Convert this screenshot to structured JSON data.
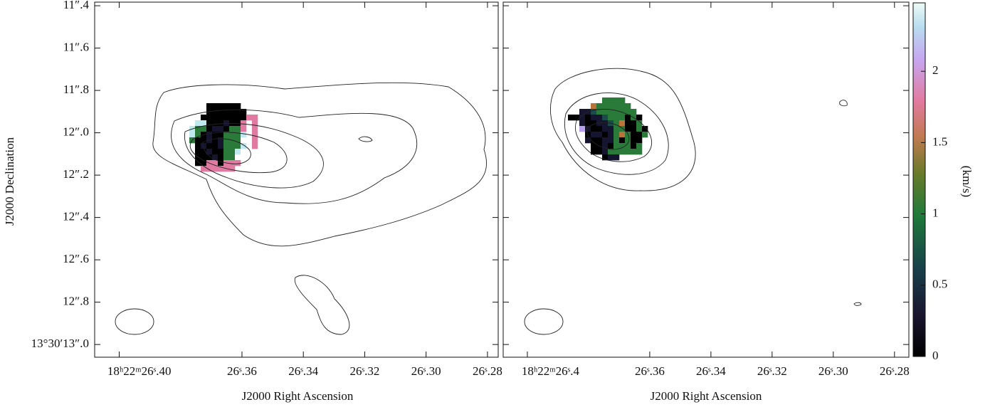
{
  "chart_data": [
    {
      "type": "image",
      "xlabel": "J2000 Right Ascension",
      "ylabel": "J2000 Declination",
      "xlim": [
        26.408,
        26.2765
      ],
      "ylim": [
        13.06,
        11.383
      ],
      "xticks": [
        {
          "value": 26.4,
          "label": "18ʰ22ᵐ26ˢ.40"
        },
        {
          "value": 26.36,
          "label": "26ˢ.36"
        },
        {
          "value": 26.34,
          "label": "26ˢ.34"
        },
        {
          "value": 26.32,
          "label": "26ˢ.32"
        },
        {
          "value": 26.3,
          "label": "26ˢ.30"
        },
        {
          "value": 26.28,
          "label": "26ˢ.28"
        }
      ],
      "yticks": [
        {
          "value": 11.4,
          "label": "11″.4"
        },
        {
          "value": 11.6,
          "label": "11″.6"
        },
        {
          "value": 11.8,
          "label": "11″.8"
        },
        {
          "value": 12.0,
          "label": "12″.0"
        },
        {
          "value": 12.2,
          "label": "12″.2"
        },
        {
          "value": 12.4,
          "label": "12″.4"
        },
        {
          "value": 12.6,
          "label": "12″.6"
        },
        {
          "value": 12.8,
          "label": "12″.8"
        },
        {
          "value": 13.0,
          "label": "13°30′13″.0"
        }
      ]
    },
    {
      "type": "image",
      "xlabel": "J2000 Right Ascension",
      "xlim": [
        26.4079,
        26.2753
      ],
      "xticks": [
        {
          "value": 26.4,
          "label": "18ʰ22ᵐ26ˢ.4"
        },
        {
          "value": 26.36,
          "label": "26ˢ.36"
        },
        {
          "value": 26.34,
          "label": "26ˢ.34"
        },
        {
          "value": 26.32,
          "label": "26ˢ.32"
        },
        {
          "value": 26.3,
          "label": "26ˢ.30"
        },
        {
          "value": 26.28,
          "label": "26ˢ.28"
        }
      ]
    },
    {
      "type": "colorbar",
      "ylabel": "(km/s)",
      "ylim": [
        0,
        2.48
      ],
      "yticks": [
        0,
        0.5,
        1,
        1.5,
        2
      ]
    }
  ]
}
